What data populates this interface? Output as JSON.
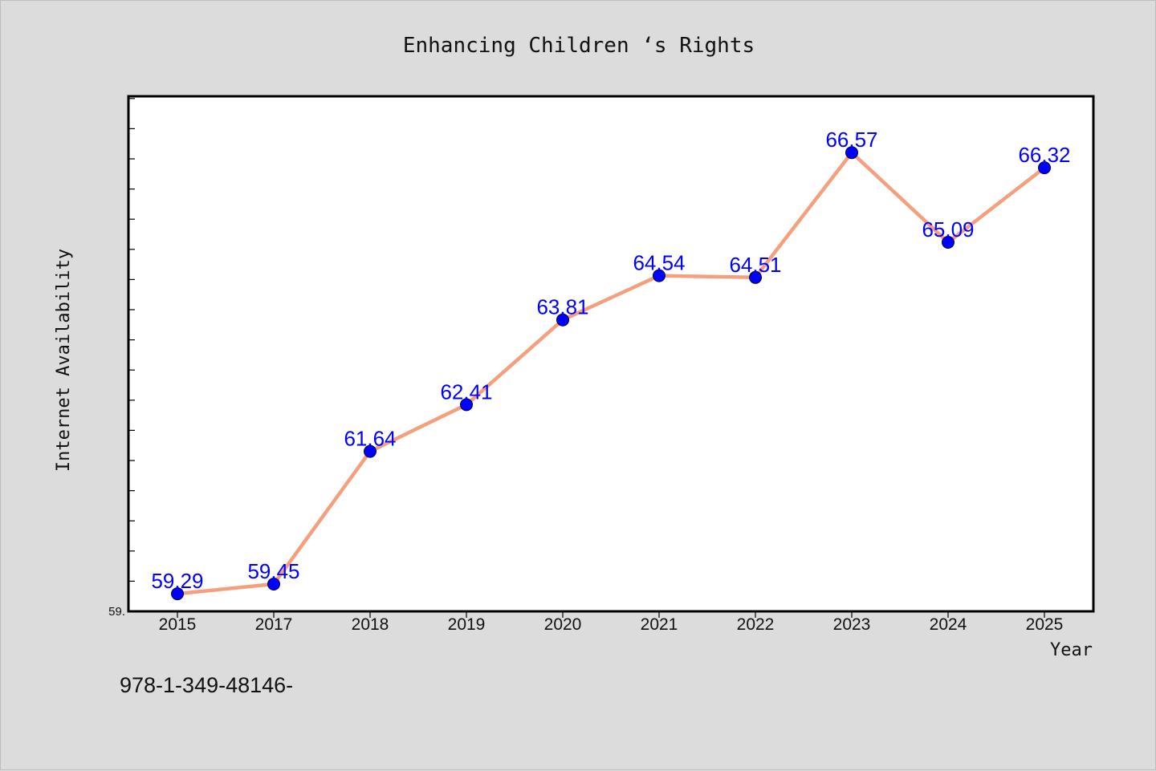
{
  "chart_data": {
    "type": "line",
    "title": "Enhancing Children ‘s Rights",
    "xlabel": "Year",
    "ylabel": "Internet Availability",
    "categories": [
      "2015",
      "2017",
      "2018",
      "2019",
      "2020",
      "2021",
      "2022",
      "2023",
      "2024",
      "2025"
    ],
    "series": [
      {
        "values": [
          59.29,
          59.45,
          61.64,
          62.41,
          63.81,
          64.54,
          64.51,
          66.57,
          65.09,
          66.32
        ]
      }
    ],
    "data_labels": [
      "59.29",
      "59.45",
      "61.64",
      "62.41",
      "63.81",
      "64.54",
      "64.51",
      "66.57",
      "65.09",
      "66.32"
    ],
    "ylim": [
      59.0,
      67.5
    ],
    "y_tick_labels": [
      "59."
    ],
    "line_color": "#f4a07e",
    "marker_color": "#0000ff",
    "label_color": "#0000ff",
    "grid": false,
    "legend": "none"
  },
  "footer_text": "978-1-349-48146-"
}
